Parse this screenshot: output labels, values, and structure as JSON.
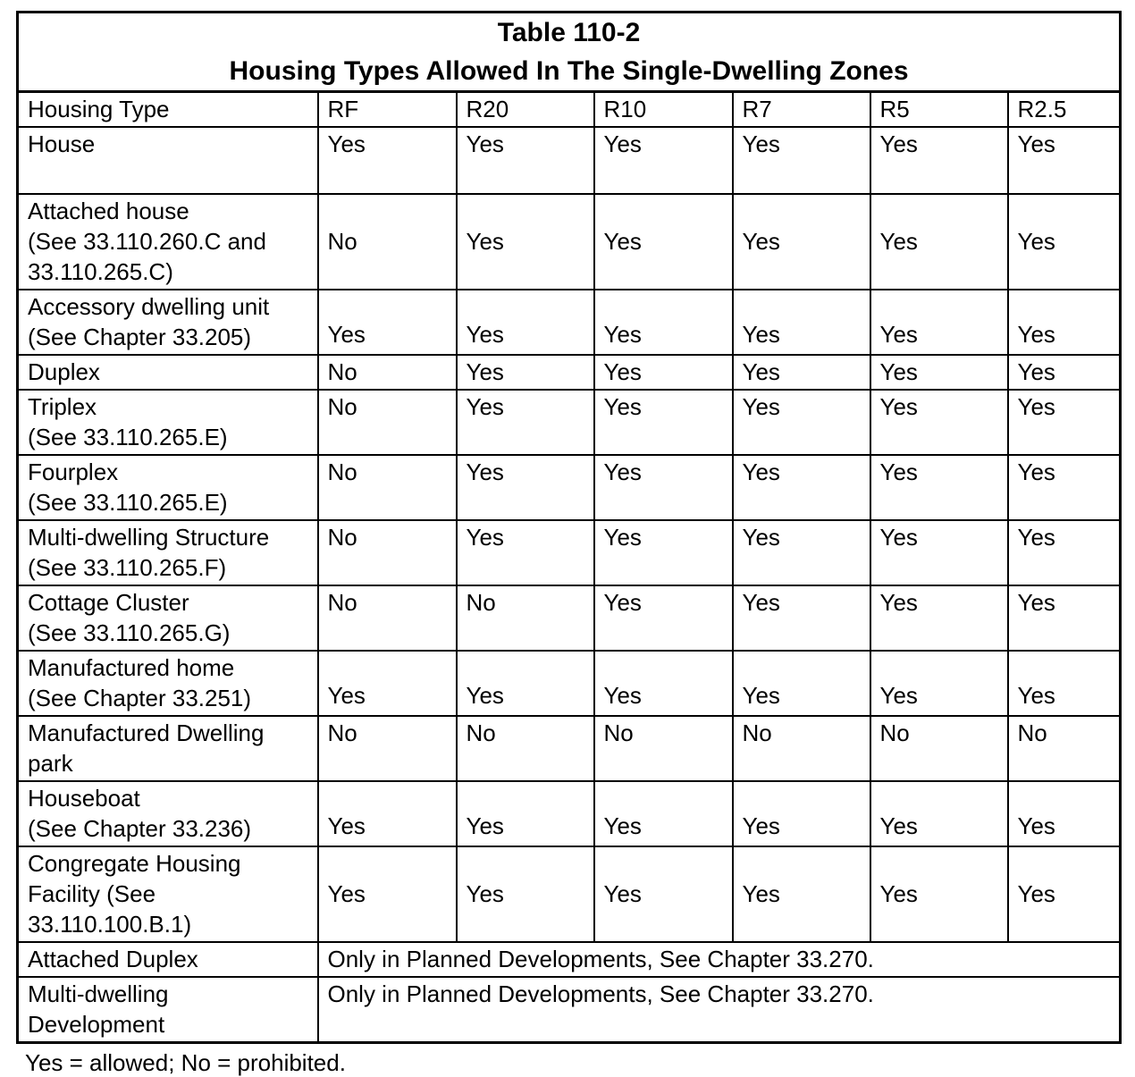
{
  "title": {
    "line1": "Table 110-2",
    "line2": "Housing Types Allowed In The Single-Dwelling Zones"
  },
  "table": {
    "columns": [
      "Housing Type",
      "RF",
      "R20",
      "R10",
      "R7",
      "R5",
      "R2.5"
    ],
    "rows": [
      {
        "label_lines": [
          "House"
        ],
        "values": [
          "Yes",
          "Yes",
          "Yes",
          "Yes",
          "Yes",
          "Yes"
        ]
      },
      {
        "label_lines": [
          "Attached house",
          "(See 33.110.260.C and",
          "33.110.265.C)"
        ],
        "values": [
          "No",
          "Yes",
          "Yes",
          "Yes",
          "Yes",
          "Yes"
        ]
      },
      {
        "label_lines": [
          "Accessory dwelling unit",
          "(See Chapter 33.205)"
        ],
        "values": [
          "Yes",
          "Yes",
          "Yes",
          "Yes",
          "Yes",
          "Yes"
        ]
      },
      {
        "label_lines": [
          "Duplex"
        ],
        "values": [
          "No",
          "Yes",
          "Yes",
          "Yes",
          "Yes",
          "Yes"
        ]
      },
      {
        "label_lines": [
          "Triplex",
          "(See 33.110.265.E)"
        ],
        "values": [
          "No",
          "Yes",
          "Yes",
          "Yes",
          "Yes",
          "Yes"
        ]
      },
      {
        "label_lines": [
          "Fourplex",
          "(See 33.110.265.E)"
        ],
        "values": [
          "No",
          "Yes",
          "Yes",
          "Yes",
          "Yes",
          "Yes"
        ]
      },
      {
        "label_lines": [
          "Multi-dwelling Structure",
          "(See 33.110.265.F)"
        ],
        "values": [
          "No",
          "Yes",
          "Yes",
          "Yes",
          "Yes",
          "Yes"
        ]
      },
      {
        "label_lines": [
          "Cottage Cluster",
          "(See 33.110.265.G)"
        ],
        "values": [
          "No",
          "No",
          "Yes",
          "Yes",
          "Yes",
          "Yes"
        ]
      },
      {
        "label_lines": [
          "Manufactured home",
          "(See Chapter 33.251)"
        ],
        "values": [
          "Yes",
          "Yes",
          "Yes",
          "Yes",
          "Yes",
          "Yes"
        ]
      },
      {
        "label_lines": [
          "Manufactured Dwelling",
          "park"
        ],
        "values": [
          "No",
          "No",
          "No",
          "No",
          "No",
          "No"
        ]
      },
      {
        "label_lines": [
          "Houseboat",
          "(See Chapter 33.236)"
        ],
        "values": [
          "Yes",
          "Yes",
          "Yes",
          "Yes",
          "Yes",
          "Yes"
        ]
      },
      {
        "label_lines": [
          "Congregate Housing",
          "Facility (See",
          "33.110.100.B.1)"
        ],
        "values": [
          "Yes",
          "Yes",
          "Yes",
          "Yes",
          "Yes",
          "Yes"
        ]
      },
      {
        "label_lines": [
          "Attached Duplex"
        ],
        "span_note": "Only in Planned Developments, See Chapter 33.270."
      },
      {
        "label_lines": [
          "Multi-dwelling",
          "Development"
        ],
        "span_note": "Only in Planned Developments, See Chapter 33.270."
      }
    ]
  },
  "footnote": "Yes = allowed; No = prohibited."
}
